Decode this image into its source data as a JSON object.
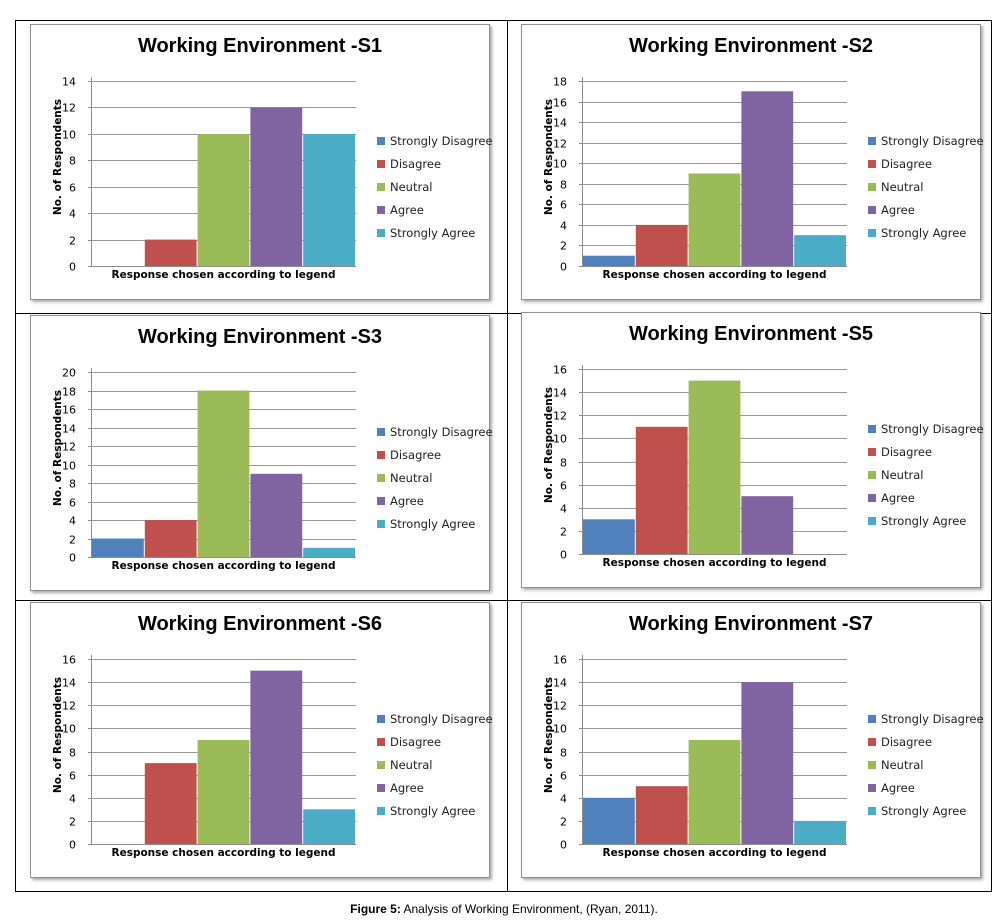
{
  "figure": {
    "caption_label": "Figure 5:",
    "caption_text": " Analysis of Working Environment, (Ryan, 2011)."
  },
  "colors": {
    "Strongly Disagree": "#4f81bd",
    "Disagree": "#c0504d",
    "Neutral": "#9bbb59",
    "Agree": "#8064a2",
    "Strongly Agree": "#4bacc6",
    "grid": "#9a9a9a",
    "axis": "#8c8c8c"
  },
  "chart_data": [
    {
      "type": "bar",
      "title": "Working Environment -S1",
      "xlabel": "Response chosen according to legend",
      "ylabel": "No. of Respondents",
      "categories": [
        "Strongly Disagree",
        "Disagree",
        "Neutral",
        "Agree",
        "Strongly Agree"
      ],
      "values": [
        0,
        2,
        10,
        12,
        10
      ],
      "ylim": [
        0,
        14
      ],
      "ystep": 2,
      "yticks": [
        "0",
        "2",
        "4",
        "6",
        "8",
        "10",
        "12",
        "14"
      ],
      "grid": true,
      "legend": "right",
      "legend_entries": [
        "Strongly Disagree",
        "Disagree",
        "Neutral",
        "Agree",
        "Strongly Agree"
      ]
    },
    {
      "type": "bar",
      "title": "Working Environment -S2",
      "xlabel": "Response chosen according to legend",
      "ylabel": "No. of Respondents",
      "categories": [
        "Strongly Disagree",
        "Disagree",
        "Neutral",
        "Agree",
        "Strongly Agree"
      ],
      "values": [
        1,
        4,
        9,
        17,
        3
      ],
      "ylim": [
        0,
        18
      ],
      "ystep": 2,
      "yticks": [
        "0",
        "2",
        "4",
        "6",
        "8",
        "10",
        "12",
        "14",
        "16",
        "18"
      ],
      "grid": true,
      "legend": "right",
      "legend_entries": [
        "Strongly Disagree",
        "Disagree",
        "Neutral",
        "Agree",
        "Strongly Agree"
      ]
    },
    {
      "type": "bar",
      "title": "Working Environment -S3",
      "xlabel": "Response chosen according to legend",
      "ylabel": "No. of Respondents",
      "categories": [
        "Strongly Disagree",
        "Disagree",
        "Neutral",
        "Agree",
        "Strongly Agree"
      ],
      "values": [
        2,
        4,
        18,
        9,
        1
      ],
      "ylim": [
        0,
        20
      ],
      "ystep": 2,
      "yticks": [
        "0",
        "2",
        "4",
        "6",
        "8",
        "10",
        "12",
        "14",
        "16",
        "18",
        "20"
      ],
      "grid": true,
      "legend": "right",
      "legend_entries": [
        "Strongly Disagree",
        "Disagree",
        "Neutral",
        "Agree",
        "Strongly Agree"
      ]
    },
    {
      "type": "bar",
      "title": "Working Environment -S5",
      "xlabel": "Response chosen according to legend",
      "ylabel": "No. of Respondents",
      "categories": [
        "Strongly Disagree",
        "Disagree",
        "Neutral",
        "Agree",
        "Strongly Agree"
      ],
      "values": [
        3,
        11,
        15,
        5,
        0
      ],
      "ylim": [
        0,
        16
      ],
      "ystep": 2,
      "yticks": [
        "0",
        "2",
        "4",
        "6",
        "8",
        "10",
        "12",
        "14",
        "16"
      ],
      "grid": true,
      "legend": "right",
      "legend_entries": [
        "Strongly Disagree",
        "Disagree",
        "Neutral",
        "Agree",
        "Strongly Agree"
      ]
    },
    {
      "type": "bar",
      "title": "Working Environment -S6",
      "xlabel": "Response chosen according to legend",
      "ylabel": "No. of Respondents",
      "categories": [
        "Strongly Disagree",
        "Disagree",
        "Neutral",
        "Agree",
        "Strongly Agree"
      ],
      "values": [
        0,
        7,
        9,
        15,
        3
      ],
      "ylim": [
        0,
        16
      ],
      "ystep": 2,
      "yticks": [
        "0",
        "2",
        "4",
        "6",
        "8",
        "10",
        "12",
        "14",
        "16"
      ],
      "grid": true,
      "legend": "right",
      "legend_entries": [
        "Strongly Disagree",
        "Disagree",
        "Neutral",
        "Agree",
        "Strongly Agree"
      ]
    },
    {
      "type": "bar",
      "title": "Working Environment -S7",
      "xlabel": "Response chosen according to legend",
      "ylabel": "No. of Respondents",
      "categories": [
        "Strongly Disagree",
        "Disagree",
        "Neutral",
        "Agree",
        "Strongly Agree"
      ],
      "values": [
        4,
        5,
        9,
        14,
        2
      ],
      "ylim": [
        0,
        16
      ],
      "ystep": 2,
      "yticks": [
        "0",
        "2",
        "4",
        "6",
        "8",
        "10",
        "12",
        "14",
        "16"
      ],
      "grid": true,
      "legend": "right",
      "legend_entries": [
        "Strongly Disagree",
        "Disagree",
        "Neutral",
        "Agree",
        "Strongly Agree"
      ]
    }
  ]
}
